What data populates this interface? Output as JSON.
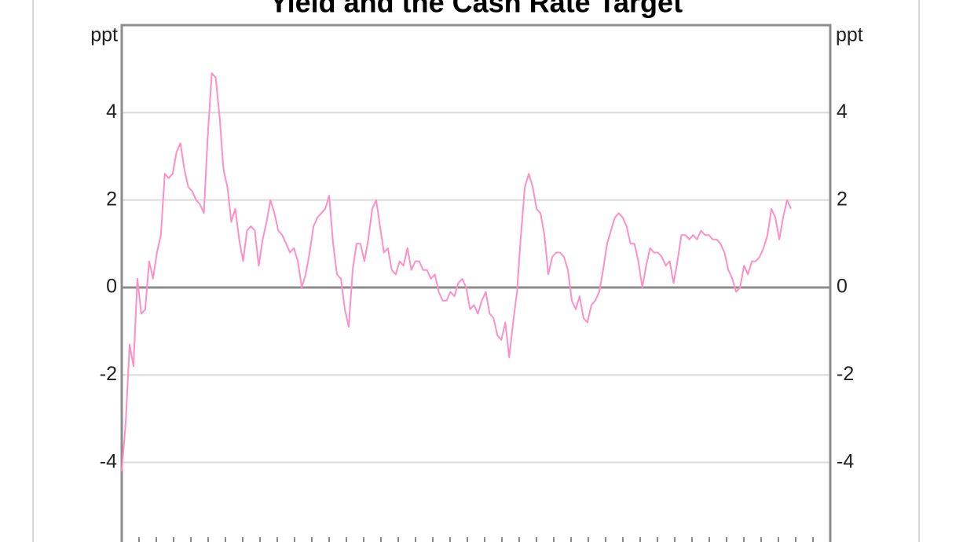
{
  "chart_data": {
    "type": "line",
    "title": "Yield and the Cash Rate Target",
    "y_label_left": "ppt",
    "y_label_right": "ppt",
    "ylim": [
      -6,
      6
    ],
    "yticks": [
      -4,
      -2,
      0,
      2,
      4
    ],
    "y2lim": [
      -6,
      6
    ],
    "y2ticks": [
      -4,
      -2,
      0,
      2,
      4
    ],
    "grid": true,
    "series": [
      {
        "color": "#ff8fc4",
        "values": [
          -4.2,
          -3.1,
          -1.3,
          -1.8,
          0.2,
          -0.6,
          -0.5,
          0.6,
          0.2,
          0.8,
          1.2,
          2.6,
          2.5,
          2.6,
          3.1,
          3.3,
          2.7,
          2.3,
          2.2,
          2.0,
          1.9,
          1.7,
          3.5,
          4.9,
          4.8,
          3.9,
          2.7,
          2.3,
          1.5,
          1.8,
          1.1,
          0.6,
          1.3,
          1.4,
          1.3,
          0.5,
          1.1,
          1.5,
          2.0,
          1.7,
          1.3,
          1.2,
          1.0,
          0.8,
          0.9,
          0.6,
          0.0,
          0.3,
          0.8,
          1.4,
          1.6,
          1.7,
          1.8,
          2.1,
          1.0,
          0.3,
          0.2,
          -0.5,
          -0.9,
          0.4,
          1.0,
          1.0,
          0.6,
          1.1,
          1.8,
          2.0,
          1.4,
          0.8,
          0.9,
          0.4,
          0.3,
          0.6,
          0.5,
          0.9,
          0.4,
          0.6,
          0.6,
          0.4,
          0.4,
          0.2,
          0.3,
          -0.1,
          -0.3,
          -0.3,
          -0.1,
          -0.2,
          0.1,
          0.2,
          0.0,
          -0.5,
          -0.4,
          -0.6,
          -0.3,
          -0.1,
          -0.6,
          -0.7,
          -1.1,
          -1.2,
          -0.8,
          -1.6,
          -0.8,
          -0.1,
          1.2,
          2.3,
          2.6,
          2.3,
          1.8,
          1.7,
          1.2,
          0.3,
          0.7,
          0.8,
          0.8,
          0.7,
          0.4,
          -0.3,
          -0.5,
          -0.2,
          -0.7,
          -0.8,
          -0.4,
          -0.3,
          -0.1,
          0.4,
          1.0,
          1.3,
          1.6,
          1.7,
          1.6,
          1.4,
          1.0,
          1.0,
          0.6,
          0.0,
          0.5,
          0.9,
          0.8,
          0.8,
          0.7,
          0.5,
          0.6,
          0.1,
          0.6,
          1.2,
          1.2,
          1.1,
          1.2,
          1.1,
          1.3,
          1.2,
          1.2,
          1.1,
          1.1,
          1.0,
          0.8,
          0.4,
          0.2,
          -0.1,
          0.0,
          0.5,
          0.3,
          0.6,
          0.6,
          0.7,
          0.9,
          1.2,
          1.8,
          1.6,
          1.1,
          1.6,
          2.0,
          1.8
        ]
      }
    ]
  }
}
